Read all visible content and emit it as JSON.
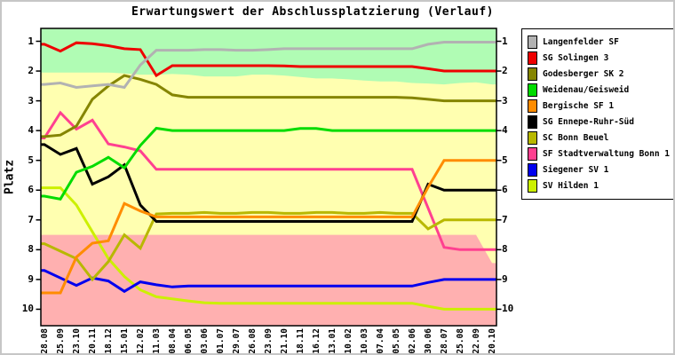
{
  "chart_data": {
    "type": "line",
    "title": "Erwartungswert der Abschlussplatzierung (Verlauf)",
    "ylabel": "Platz",
    "plot_background": "#FFFFB0",
    "y_axis": {
      "min": 1,
      "max": 10,
      "inverted": true,
      "ticks": [
        1,
        2,
        3,
        4,
        5,
        6,
        7,
        8,
        9,
        10
      ],
      "drawn_range": [
        0.55,
        10.55
      ]
    },
    "x_labels": [
      "28.08",
      "25.09",
      "23.10",
      "20.11",
      "18.12",
      "15.01",
      "12.02",
      "11.03",
      "08.04",
      "06.05",
      "03.06",
      "01.07",
      "29.07",
      "26.08",
      "23.09",
      "21.10",
      "18.11",
      "16.12",
      "13.01",
      "10.02",
      "10.03",
      "07.04",
      "05.05",
      "02.06",
      "30.06",
      "28.07",
      "25.08",
      "22.09",
      "20.10"
    ],
    "zones": [
      {
        "name": "aufstiegszone",
        "side": "top",
        "color": "#B0FCB4",
        "boundary": [
          2.05,
          2.05,
          2.05,
          2.05,
          2.05,
          2.08,
          2.12,
          2.12,
          2.1,
          2.12,
          2.18,
          2.18,
          2.18,
          2.12,
          2.12,
          2.15,
          2.2,
          2.25,
          2.25,
          2.28,
          2.32,
          2.35,
          2.35,
          2.4,
          2.42,
          2.45,
          2.4,
          2.38,
          2.45
        ]
      },
      {
        "name": "abstiegszone",
        "side": "bottom",
        "color": "#FFB0B0",
        "boundary": [
          7.5,
          7.5,
          7.5,
          7.5,
          7.5,
          7.5,
          7.5,
          7.5,
          7.5,
          7.5,
          7.5,
          7.5,
          7.5,
          7.5,
          7.5,
          7.5,
          7.5,
          7.5,
          7.5,
          7.5,
          7.5,
          7.5,
          7.5,
          7.5,
          7.5,
          7.5,
          7.5,
          7.5,
          8.45
        ]
      }
    ],
    "series": [
      {
        "name": "Langenfelder SF",
        "color": "#B2B2B2",
        "values": [
          2.45,
          2.4,
          2.55,
          2.5,
          2.45,
          2.55,
          1.8,
          1.3,
          1.3,
          1.3,
          1.28,
          1.28,
          1.3,
          1.3,
          1.28,
          1.25,
          1.25,
          1.25,
          1.25,
          1.25,
          1.25,
          1.25,
          1.25,
          1.25,
          1.1,
          1.03,
          1.03,
          1.03,
          1.03
        ]
      },
      {
        "name": "SG Solingen 3",
        "color": "#EE0000",
        "values": [
          1.1,
          1.33,
          1.05,
          1.08,
          1.15,
          1.25,
          1.28,
          2.15,
          1.82,
          1.82,
          1.82,
          1.82,
          1.82,
          1.82,
          1.82,
          1.83,
          1.85,
          1.85,
          1.85,
          1.85,
          1.85,
          1.85,
          1.85,
          1.85,
          1.92,
          2.0,
          2.0,
          2.0,
          2.0
        ]
      },
      {
        "name": "Godesberger SK 2",
        "color": "#858500",
        "values": [
          4.2,
          4.15,
          3.85,
          2.95,
          2.5,
          2.15,
          2.28,
          2.45,
          2.8,
          2.88,
          2.88,
          2.88,
          2.88,
          2.88,
          2.88,
          2.88,
          2.88,
          2.88,
          2.88,
          2.88,
          2.88,
          2.88,
          2.88,
          2.9,
          2.95,
          3.0,
          3.0,
          3.0,
          3.0
        ]
      },
      {
        "name": "Weidenau/Geisweid",
        "color": "#00DC00",
        "values": [
          6.2,
          6.3,
          5.4,
          5.2,
          4.9,
          5.25,
          4.5,
          3.92,
          4.0,
          4.0,
          4.0,
          4.0,
          4.0,
          4.0,
          4.0,
          4.0,
          3.93,
          3.93,
          4.0,
          4.0,
          4.0,
          4.0,
          4.0,
          4.0,
          4.0,
          4.0,
          4.0,
          4.0,
          4.0
        ]
      },
      {
        "name": "Bergische SF 1",
        "color": "#FF8C00",
        "values": [
          9.45,
          9.45,
          8.25,
          7.78,
          7.7,
          6.45,
          6.7,
          6.9,
          6.9,
          6.9,
          6.9,
          6.9,
          6.9,
          6.9,
          6.9,
          6.9,
          6.9,
          6.9,
          6.9,
          6.9,
          6.9,
          6.9,
          6.9,
          6.9,
          5.9,
          5.0,
          5.0,
          5.0,
          5.0
        ]
      },
      {
        "name": "SG Ennepe-Ruhr-Süd",
        "color": "#000000",
        "values": [
          4.47,
          4.8,
          4.6,
          5.8,
          5.55,
          5.15,
          6.5,
          7.05,
          7.05,
          7.05,
          7.05,
          7.05,
          7.05,
          7.05,
          7.05,
          7.05,
          7.05,
          7.05,
          7.05,
          7.05,
          7.05,
          7.05,
          7.05,
          7.05,
          5.8,
          6.0,
          6.0,
          6.0,
          6.0
        ]
      },
      {
        "name": "SC Bonn Beuel",
        "color": "#B8B800",
        "values": [
          7.8,
          8.05,
          8.3,
          9.0,
          8.4,
          7.5,
          7.95,
          6.8,
          6.78,
          6.78,
          6.75,
          6.78,
          6.78,
          6.75,
          6.75,
          6.78,
          6.78,
          6.75,
          6.75,
          6.78,
          6.78,
          6.75,
          6.78,
          6.78,
          7.3,
          7.0,
          7.0,
          7.0,
          7.0
        ]
      },
      {
        "name": "SF Stadtverwaltung Bonn 1",
        "color": "#FF4090",
        "values": [
          4.25,
          3.4,
          3.95,
          3.65,
          4.45,
          4.55,
          4.68,
          5.3,
          5.3,
          5.3,
          5.3,
          5.3,
          5.3,
          5.3,
          5.3,
          5.3,
          5.3,
          5.3,
          5.3,
          5.3,
          5.3,
          5.3,
          5.3,
          5.3,
          6.6,
          7.92,
          8.0,
          8.0,
          8.0
        ]
      },
      {
        "name": "Siegener SV 1",
        "color": "#0000EE",
        "values": [
          8.7,
          8.95,
          9.2,
          8.95,
          9.05,
          9.4,
          9.08,
          9.18,
          9.25,
          9.22,
          9.22,
          9.22,
          9.22,
          9.22,
          9.22,
          9.22,
          9.22,
          9.22,
          9.22,
          9.22,
          9.22,
          9.22,
          9.22,
          9.22,
          9.1,
          9.0,
          9.0,
          9.0,
          9.0
        ]
      },
      {
        "name": "SV Hilden 1",
        "color": "#CCF000",
        "values": [
          5.92,
          5.92,
          6.5,
          7.4,
          8.3,
          8.9,
          9.35,
          9.58,
          9.65,
          9.72,
          9.78,
          9.8,
          9.8,
          9.8,
          9.8,
          9.8,
          9.8,
          9.8,
          9.8,
          9.8,
          9.8,
          9.8,
          9.8,
          9.8,
          9.9,
          10.0,
          10.0,
          10.0,
          10.0
        ]
      }
    ],
    "legend_position": "top-right"
  }
}
